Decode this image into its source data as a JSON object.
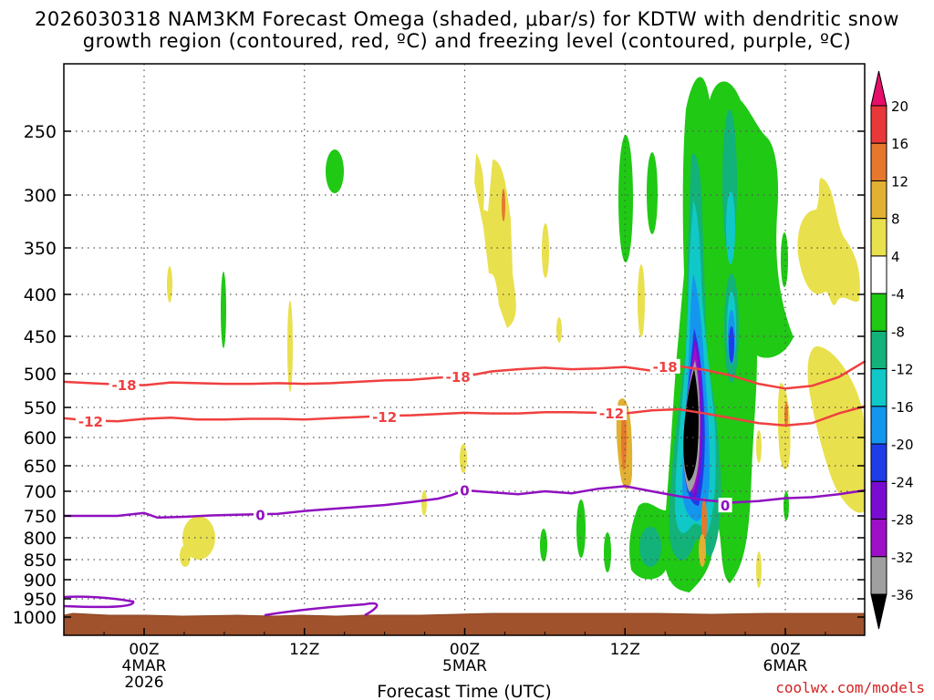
{
  "chart_data": {
    "type": "heatmap",
    "title": [
      "2026030318 NAM3KM Forecast Omega (shaded, μbar/s) for KDTW with dendritic snow",
      "growth region (contoured, red, ºC) and freezing level (contoured, purple, ºC)"
    ],
    "xlabel": "Forecast Time (UTC)",
    "ylabel": "",
    "y_ticks": [
      "250",
      "300",
      "350",
      "400",
      "450",
      "500",
      "550",
      "600",
      "650",
      "700",
      "750",
      "800",
      "850",
      "900",
      "950",
      "1000"
    ],
    "x_ticks": [
      {
        "hour": 6,
        "lines": [
          "00Z",
          "4MAR",
          "2026"
        ]
      },
      {
        "hour": 18,
        "lines": [
          "12Z"
        ]
      },
      {
        "hour": 30,
        "lines": [
          "00Z",
          "5MAR"
        ]
      },
      {
        "hour": 42,
        "lines": [
          "12Z"
        ]
      },
      {
        "hour": 54,
        "lines": [
          "00Z",
          "6MAR"
        ]
      }
    ],
    "x_range_hours": [
      0,
      60
    ],
    "y_range_hpa": [
      200,
      1050
    ],
    "colorbar_labels": [
      "20",
      "16",
      "12",
      "8",
      "4",
      "-4",
      "-8",
      "-12",
      "-16",
      "-20",
      "-24",
      "-28",
      "-32",
      "-36"
    ],
    "colorbar_colors": [
      "#e60e6b",
      "#e8383a",
      "#e6782d",
      "#e2b032",
      "#e9e04e",
      "#ffffff",
      "#1fc914",
      "#12b27a",
      "#10c8c8",
      "#1496ef",
      "#1e3ce8",
      "#7a0cd2",
      "#9e10c8",
      "#a0a0a0",
      "#000000"
    ],
    "contours": {
      "dendritic_-18": {
        "label": "-18",
        "color": "#f04040",
        "points": [
          [
            0,
            512
          ],
          [
            2,
            514
          ],
          [
            4,
            516
          ],
          [
            6,
            517
          ],
          [
            8,
            513
          ],
          [
            10,
            514
          ],
          [
            12,
            515
          ],
          [
            14,
            515
          ],
          [
            16,
            514
          ],
          [
            18,
            515
          ],
          [
            20,
            514
          ],
          [
            22,
            512
          ],
          [
            24,
            510
          ],
          [
            26,
            509
          ],
          [
            28,
            506
          ],
          [
            30,
            504
          ],
          [
            32,
            497
          ],
          [
            34,
            494
          ],
          [
            36,
            492
          ],
          [
            38,
            494
          ],
          [
            40,
            493
          ],
          [
            42,
            491
          ],
          [
            44,
            496
          ],
          [
            46,
            490
          ],
          [
            48,
            495
          ],
          [
            50,
            503
          ],
          [
            52,
            515
          ],
          [
            54,
            522
          ],
          [
            56,
            518
          ],
          [
            58,
            505
          ],
          [
            60,
            483
          ]
        ],
        "label_positions": [
          [
            4.5,
            516
          ],
          [
            29.5,
            504
          ],
          [
            45,
            490
          ]
        ]
      },
      "dendritic_-12": {
        "label": "-12",
        "color": "#f04040",
        "points": [
          [
            0,
            568
          ],
          [
            2,
            572
          ],
          [
            4,
            573
          ],
          [
            6,
            569
          ],
          [
            8,
            567
          ],
          [
            10,
            570
          ],
          [
            12,
            570
          ],
          [
            14,
            569
          ],
          [
            16,
            569
          ],
          [
            18,
            570
          ],
          [
            20,
            568
          ],
          [
            22,
            566
          ],
          [
            24,
            564
          ],
          [
            26,
            563
          ],
          [
            28,
            561
          ],
          [
            30,
            559
          ],
          [
            32,
            560
          ],
          [
            34,
            560
          ],
          [
            36,
            558
          ],
          [
            38,
            558
          ],
          [
            40,
            559
          ],
          [
            42,
            560
          ],
          [
            44,
            555
          ],
          [
            46,
            553
          ],
          [
            48,
            560
          ],
          [
            50,
            568
          ],
          [
            52,
            576
          ],
          [
            54,
            580
          ],
          [
            56,
            576
          ],
          [
            58,
            560
          ],
          [
            60,
            548
          ]
        ],
        "label_positions": [
          [
            2,
            573
          ],
          [
            24,
            565
          ],
          [
            41,
            559
          ]
        ]
      },
      "freezing_0": {
        "label": "0",
        "color": "#9010c0",
        "points": [
          [
            0,
            750
          ],
          [
            2,
            750
          ],
          [
            4,
            750
          ],
          [
            6,
            744
          ],
          [
            7,
            754
          ],
          [
            9,
            752
          ],
          [
            11,
            749
          ],
          [
            14,
            747
          ],
          [
            16,
            746
          ],
          [
            18,
            740
          ],
          [
            20,
            736
          ],
          [
            22,
            732
          ],
          [
            24,
            728
          ],
          [
            26,
            722
          ],
          [
            28,
            715
          ],
          [
            29,
            708
          ],
          [
            30,
            698
          ],
          [
            32,
            702
          ],
          [
            34,
            706
          ],
          [
            36,
            700
          ],
          [
            38,
            704
          ],
          [
            40,
            695
          ],
          [
            42,
            690
          ],
          [
            44,
            700
          ],
          [
            46,
            710
          ],
          [
            48,
            718
          ],
          [
            50,
            723
          ],
          [
            52,
            720
          ],
          [
            54,
            714
          ],
          [
            56,
            712
          ],
          [
            58,
            706
          ],
          [
            60,
            698
          ]
        ],
        "label_positions": [
          [
            14.7,
            747
          ],
          [
            30,
            697
          ],
          [
            49.5,
            728
          ]
        ]
      }
    }
  },
  "credit": "coolwx.com/models"
}
